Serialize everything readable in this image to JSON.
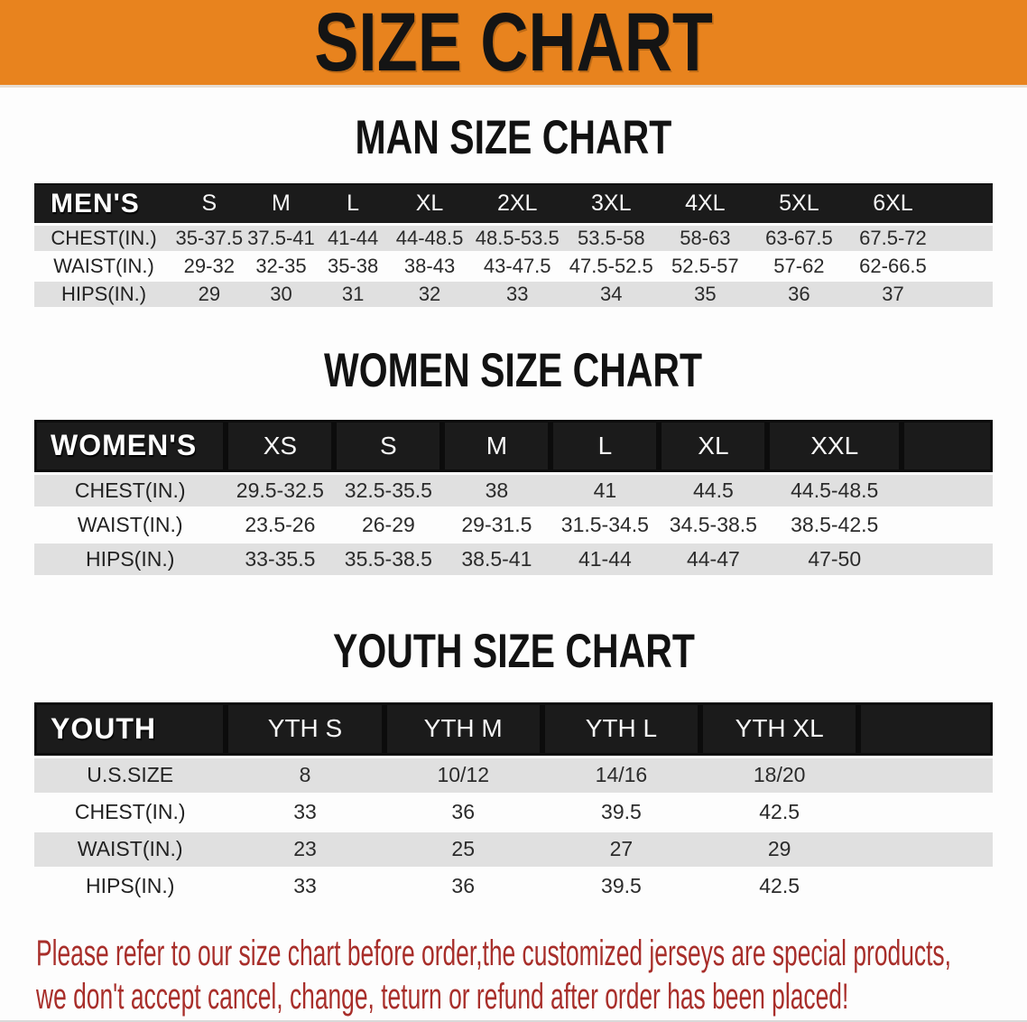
{
  "banner": {
    "title": "SIZE CHART"
  },
  "colors": {
    "banner_bg": "#e8831e",
    "header_bar_bg": "#1b1b1b",
    "row_stripe": "#e0e0e0",
    "disclaimer_red": "#a82e2a"
  },
  "man_section": {
    "heading": "MAN SIZE CHART",
    "table": {
      "label_header": "MEN'S",
      "size_headers": [
        "S",
        "M",
        "L",
        "XL",
        "2XL",
        "3XL",
        "4XL",
        "5XL",
        "6XL"
      ],
      "rows": [
        {
          "label": "CHEST(IN.)",
          "values": [
            "35-37.5",
            "37.5-41",
            "41-44",
            "44-48.5",
            "48.5-53.5",
            "53.5-58",
            "58-63",
            "63-67.5",
            "67.5-72"
          ]
        },
        {
          "label": "WAIST(IN.)",
          "values": [
            "29-32",
            "32-35",
            "35-38",
            "38-43",
            "43-47.5",
            "47.5-52.5",
            "52.5-57",
            "57-62",
            "62-66.5"
          ]
        },
        {
          "label": "HIPS(IN.)",
          "values": [
            "29",
            "30",
            "31",
            "32",
            "33",
            "34",
            "35",
            "36",
            "37"
          ]
        }
      ]
    }
  },
  "women_section": {
    "heading": "WOMEN SIZE CHART",
    "table": {
      "label_header": "WOMEN'S",
      "size_headers": [
        "XS",
        "S",
        "M",
        "L",
        "XL",
        "XXL"
      ],
      "rows": [
        {
          "label": "CHEST(IN.)",
          "values": [
            "29.5-32.5",
            "32.5-35.5",
            "38",
            "41",
            "44.5",
            "44.5-48.5"
          ]
        },
        {
          "label": "WAIST(IN.)",
          "values": [
            "23.5-26",
            "26-29",
            "29-31.5",
            "31.5-34.5",
            "34.5-38.5",
            "38.5-42.5"
          ]
        },
        {
          "label": "HIPS(IN.)",
          "values": [
            "33-35.5",
            "35.5-38.5",
            "38.5-41",
            "41-44",
            "44-47",
            "47-50"
          ]
        }
      ]
    }
  },
  "youth_section": {
    "heading": "YOUTH SIZE CHART",
    "table": {
      "label_header": "YOUTH",
      "size_headers": [
        "YTH S",
        "YTH M",
        "YTH L",
        "YTH XL"
      ],
      "rows": [
        {
          "label": "U.S.SIZE",
          "values": [
            "8",
            "10/12",
            "14/16",
            "18/20"
          ]
        },
        {
          "label": "CHEST(IN.)",
          "values": [
            "33",
            "36",
            "39.5",
            "42.5"
          ]
        },
        {
          "label": "WAIST(IN.)",
          "values": [
            "23",
            "25",
            "27",
            "29"
          ]
        },
        {
          "label": "HIPS(IN.)",
          "values": [
            "33",
            "36",
            "39.5",
            "42.5"
          ]
        }
      ]
    }
  },
  "disclaimer": {
    "line1": "Please refer to our size chart before order,the customized jerseys are special products,",
    "line2": "we don't accept cancel, change, teturn or refund after order has been placed!"
  }
}
